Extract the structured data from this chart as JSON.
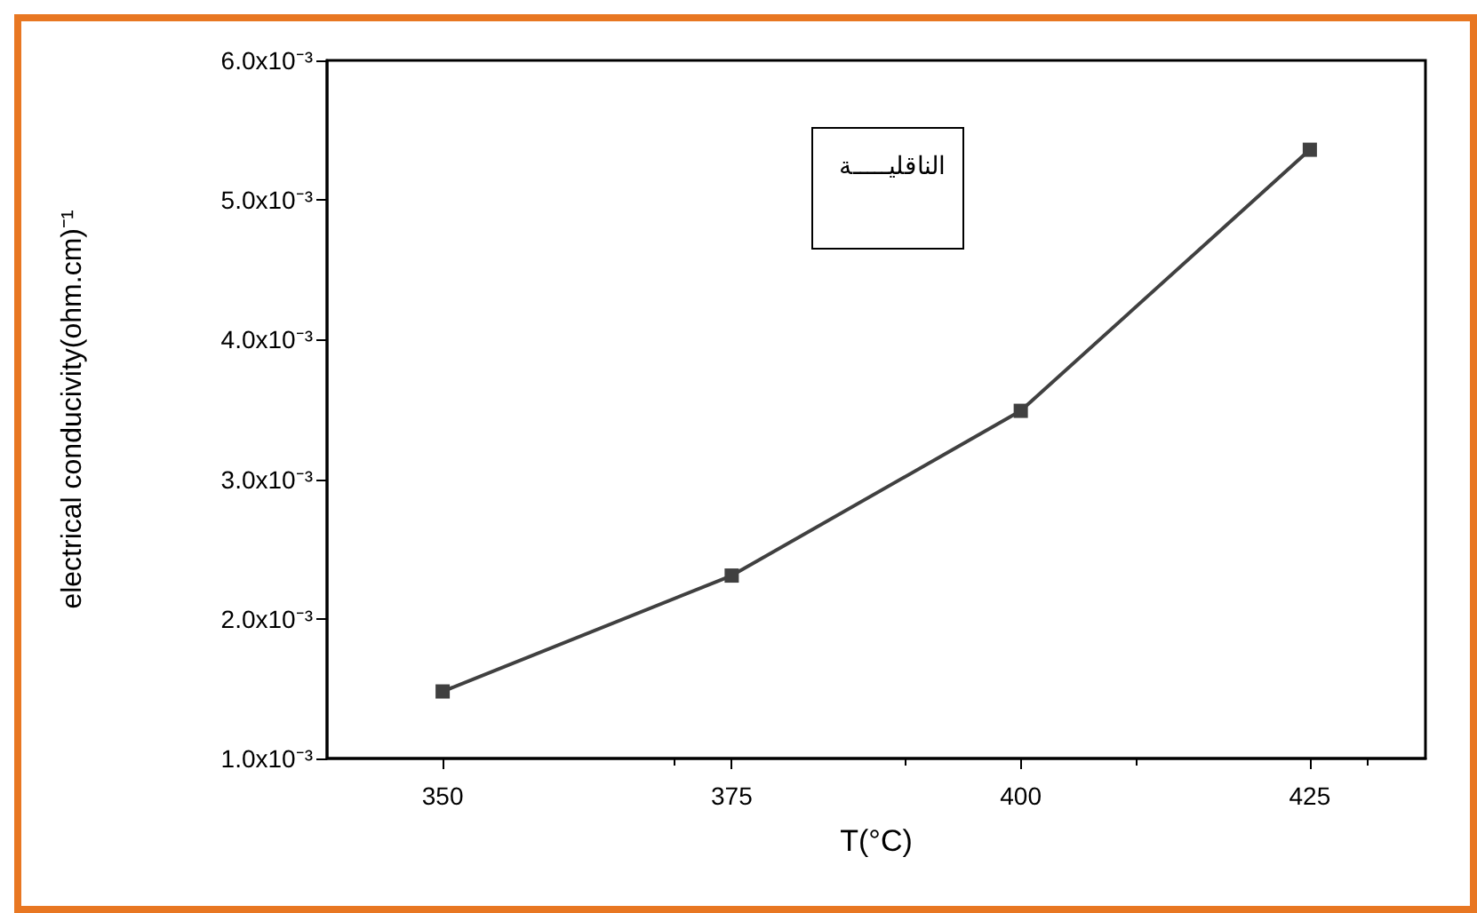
{
  "chart_data": {
    "type": "line",
    "xlabel": "T(°C)",
    "ylabel": "electrical conducivity(ohm.cm)⁻¹",
    "x": [
      350,
      375,
      400,
      425
    ],
    "series": [
      {
        "name": "الناقليـــــة",
        "color": "#404040",
        "values": [
          0.00148,
          0.00231,
          0.00349,
          0.00536
        ]
      }
    ],
    "xlim": [
      340,
      435
    ],
    "xticks": [
      350,
      375,
      400,
      425
    ],
    "ylim": [
      0.001,
      0.006
    ],
    "yticks": [
      {
        "value": 0.001,
        "label": "1.0x10⁻³"
      },
      {
        "value": 0.002,
        "label": "2.0x10⁻³"
      },
      {
        "value": 0.003,
        "label": "3.0x10⁻³"
      },
      {
        "value": 0.004,
        "label": "4.0x10⁻³"
      },
      {
        "value": 0.005,
        "label": "5.0x10⁻³"
      },
      {
        "value": 0.006,
        "label": "6.0x10⁻³"
      }
    ],
    "grid": false,
    "legend": "top",
    "marker": "square",
    "line_style": "solid"
  }
}
